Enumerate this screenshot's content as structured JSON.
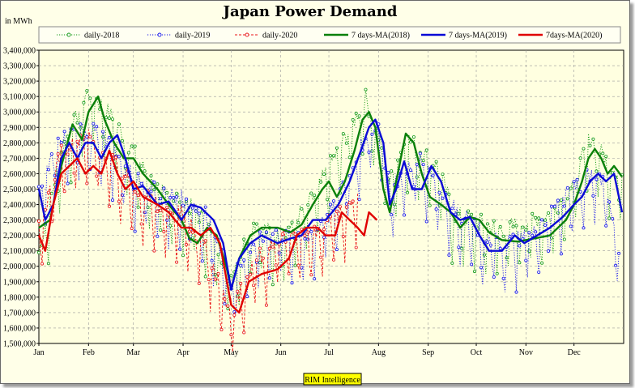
{
  "chart_data": {
    "type": "line",
    "title": "Japan Power Demand",
    "unit_label": "in MWh",
    "source": "RIM Intelligence",
    "ylim": [
      1500000,
      3400000
    ],
    "y_ticks": [
      1500000,
      1600000,
      1700000,
      1800000,
      1900000,
      2000000,
      2100000,
      2200000,
      2300000,
      2400000,
      2500000,
      2600000,
      2700000,
      2800000,
      2900000,
      3000000,
      3100000,
      3200000,
      3300000,
      3400000
    ],
    "y_tick_labels": [
      "1,500,000",
      "1,600,000",
      "1,700,000",
      "1,800,000",
      "1,900,000",
      "2,000,000",
      "2,100,000",
      "2,200,000",
      "2,300,000",
      "2,400,000",
      "2,500,000",
      "2,600,000",
      "2,700,000",
      "2,800,000",
      "2,900,000",
      "3,000,000",
      "3,100,000",
      "3,200,000",
      "3,300,000",
      "3,400,000"
    ],
    "x_tick_labels": [
      "Jan",
      "Feb",
      "Mar",
      "Apr",
      "May",
      "Jun",
      "Jul",
      "Aug",
      "Sep",
      "Oct",
      "Nov",
      "Dec"
    ],
    "x_domain_days": [
      1,
      366
    ],
    "grid": true,
    "legend_position": "top",
    "colors": {
      "s2018": "#159a15",
      "s2019": "#1515e8",
      "s2020": "#e81515",
      "ma2018": "#0a800a",
      "ma2019": "#0a0ad6",
      "ma2020": "#e00000"
    },
    "series": [
      {
        "name": "daily-2018",
        "style": "dotted-markers",
        "anchors": [
          [
            1,
            2050000
          ],
          [
            15,
            2700000
          ],
          [
            32,
            3100000
          ],
          [
            45,
            2950000
          ],
          [
            60,
            2700000
          ],
          [
            75,
            2450000
          ],
          [
            90,
            2400000
          ],
          [
            105,
            2250000
          ],
          [
            121,
            1900000
          ],
          [
            135,
            2250000
          ],
          [
            150,
            2150000
          ],
          [
            160,
            2250000
          ],
          [
            172,
            2400000
          ],
          [
            182,
            2600000
          ],
          [
            195,
            2850000
          ],
          [
            205,
            3050000
          ],
          [
            213,
            2800000
          ],
          [
            220,
            2500000
          ],
          [
            230,
            2800000
          ],
          [
            240,
            2700000
          ],
          [
            250,
            2600000
          ],
          [
            260,
            2300000
          ],
          [
            274,
            2250000
          ],
          [
            290,
            2200000
          ],
          [
            305,
            2250000
          ],
          [
            320,
            2300000
          ],
          [
            335,
            2500000
          ],
          [
            345,
            2800000
          ],
          [
            355,
            2650000
          ],
          [
            365,
            2550000
          ]
        ]
      },
      {
        "name": "daily-2019",
        "style": "dotted-markers",
        "anchors": [
          [
            1,
            2450000
          ],
          [
            15,
            2800000
          ],
          [
            32,
            2850000
          ],
          [
            45,
            2750000
          ],
          [
            60,
            2550000
          ],
          [
            75,
            2450000
          ],
          [
            90,
            2400000
          ],
          [
            105,
            2300000
          ],
          [
            121,
            1850000
          ],
          [
            135,
            2100000
          ],
          [
            150,
            2200000
          ],
          [
            160,
            2150000
          ],
          [
            172,
            2200000
          ],
          [
            182,
            2300000
          ],
          [
            195,
            2550000
          ],
          [
            205,
            2800000
          ],
          [
            213,
            2900000
          ],
          [
            220,
            2450000
          ],
          [
            230,
            2600000
          ],
          [
            240,
            2650000
          ],
          [
            250,
            2450000
          ],
          [
            260,
            2350000
          ],
          [
            274,
            2200000
          ],
          [
            290,
            2100000
          ],
          [
            305,
            2150000
          ],
          [
            320,
            2300000
          ],
          [
            335,
            2450000
          ],
          [
            345,
            2550000
          ],
          [
            355,
            2500000
          ],
          [
            363,
            2100000
          ]
        ]
      },
      {
        "name": "daily-2020",
        "style": "dashed-markers",
        "anchors": [
          [
            1,
            2200000
          ],
          [
            15,
            2700000
          ],
          [
            32,
            2800000
          ],
          [
            45,
            2650000
          ],
          [
            60,
            2500000
          ],
          [
            75,
            2350000
          ],
          [
            90,
            2300000
          ],
          [
            105,
            2100000
          ],
          [
            121,
            1650000
          ],
          [
            135,
            2000000
          ],
          [
            150,
            2100000
          ],
          [
            160,
            2200000
          ],
          [
            172,
            2150000
          ],
          [
            182,
            2250000
          ],
          [
            190,
            2300000
          ],
          [
            200,
            2450000
          ]
        ]
      },
      {
        "name": "7 days-MA(2018)",
        "style": "solid",
        "anchors": [
          [
            1,
            2250000
          ],
          [
            8,
            2300000
          ],
          [
            15,
            2650000
          ],
          [
            22,
            2920000
          ],
          [
            28,
            2820000
          ],
          [
            32,
            3000000
          ],
          [
            38,
            3100000
          ],
          [
            42,
            2950000
          ],
          [
            48,
            2800000
          ],
          [
            54,
            2700000
          ],
          [
            60,
            2700000
          ],
          [
            66,
            2600000
          ],
          [
            75,
            2500000
          ],
          [
            82,
            2400000
          ],
          [
            90,
            2300000
          ],
          [
            95,
            2180000
          ],
          [
            100,
            2150000
          ],
          [
            106,
            2250000
          ],
          [
            112,
            2200000
          ],
          [
            118,
            2000000
          ],
          [
            121,
            1850000
          ],
          [
            126,
            2050000
          ],
          [
            133,
            2200000
          ],
          [
            140,
            2250000
          ],
          [
            150,
            2250000
          ],
          [
            158,
            2220000
          ],
          [
            165,
            2270000
          ],
          [
            172,
            2400000
          ],
          [
            178,
            2500000
          ],
          [
            182,
            2550000
          ],
          [
            187,
            2450000
          ],
          [
            192,
            2550000
          ],
          [
            198,
            2750000
          ],
          [
            203,
            2950000
          ],
          [
            207,
            3000000
          ],
          [
            211,
            2900000
          ],
          [
            216,
            2500000
          ],
          [
            220,
            2350000
          ],
          [
            225,
            2600000
          ],
          [
            230,
            2860000
          ],
          [
            235,
            2800000
          ],
          [
            240,
            2600000
          ],
          [
            245,
            2450000
          ],
          [
            252,
            2400000
          ],
          [
            258,
            2350000
          ],
          [
            264,
            2250000
          ],
          [
            270,
            2320000
          ],
          [
            276,
            2300000
          ],
          [
            282,
            2220000
          ],
          [
            290,
            2170000
          ],
          [
            300,
            2160000
          ],
          [
            310,
            2180000
          ],
          [
            320,
            2200000
          ],
          [
            330,
            2300000
          ],
          [
            335,
            2400000
          ],
          [
            340,
            2550000
          ],
          [
            344,
            2700000
          ],
          [
            348,
            2760000
          ],
          [
            352,
            2700000
          ],
          [
            356,
            2600000
          ],
          [
            360,
            2650000
          ],
          [
            365,
            2580000
          ]
        ]
      },
      {
        "name": "7 days-MA(2019)",
        "style": "solid",
        "anchors": [
          [
            1,
            2500000
          ],
          [
            5,
            2300000
          ],
          [
            10,
            2400000
          ],
          [
            15,
            2700000
          ],
          [
            20,
            2800000
          ],
          [
            25,
            2700000
          ],
          [
            30,
            2800000
          ],
          [
            35,
            2800000
          ],
          [
            40,
            2700000
          ],
          [
            45,
            2800000
          ],
          [
            50,
            2850000
          ],
          [
            55,
            2700000
          ],
          [
            60,
            2500000
          ],
          [
            66,
            2520000
          ],
          [
            75,
            2400000
          ],
          [
            82,
            2420000
          ],
          [
            90,
            2300000
          ],
          [
            96,
            2400000
          ],
          [
            102,
            2380000
          ],
          [
            110,
            2300000
          ],
          [
            116,
            2150000
          ],
          [
            121,
            1850000
          ],
          [
            126,
            2050000
          ],
          [
            133,
            2150000
          ],
          [
            140,
            2200000
          ],
          [
            150,
            2150000
          ],
          [
            158,
            2180000
          ],
          [
            165,
            2200000
          ],
          [
            172,
            2300000
          ],
          [
            180,
            2300000
          ],
          [
            188,
            2400000
          ],
          [
            195,
            2550000
          ],
          [
            202,
            2750000
          ],
          [
            207,
            2900000
          ],
          [
            211,
            2950000
          ],
          [
            216,
            2800000
          ],
          [
            220,
            2400000
          ],
          [
            224,
            2500000
          ],
          [
            229,
            2680000
          ],
          [
            234,
            2500000
          ],
          [
            240,
            2500000
          ],
          [
            246,
            2650000
          ],
          [
            252,
            2550000
          ],
          [
            258,
            2350000
          ],
          [
            264,
            2300000
          ],
          [
            270,
            2320000
          ],
          [
            276,
            2200000
          ],
          [
            282,
            2100000
          ],
          [
            290,
            2100000
          ],
          [
            298,
            2200000
          ],
          [
            304,
            2150000
          ],
          [
            312,
            2200000
          ],
          [
            320,
            2250000
          ],
          [
            328,
            2320000
          ],
          [
            335,
            2400000
          ],
          [
            340,
            2450000
          ],
          [
            345,
            2550000
          ],
          [
            350,
            2600000
          ],
          [
            355,
            2550000
          ],
          [
            360,
            2600000
          ],
          [
            365,
            2350000
          ]
        ]
      },
      {
        "name": "7days-MA(2020)",
        "style": "solid",
        "anchors": [
          [
            1,
            2200000
          ],
          [
            5,
            2100000
          ],
          [
            10,
            2400000
          ],
          [
            15,
            2600000
          ],
          [
            20,
            2650000
          ],
          [
            25,
            2700000
          ],
          [
            30,
            2600000
          ],
          [
            35,
            2650000
          ],
          [
            40,
            2600000
          ],
          [
            45,
            2750000
          ],
          [
            50,
            2600000
          ],
          [
            55,
            2500000
          ],
          [
            60,
            2550000
          ],
          [
            66,
            2450000
          ],
          [
            75,
            2400000
          ],
          [
            82,
            2350000
          ],
          [
            90,
            2250000
          ],
          [
            96,
            2250000
          ],
          [
            102,
            2200000
          ],
          [
            108,
            2250000
          ],
          [
            114,
            2150000
          ],
          [
            121,
            1750000
          ],
          [
            126,
            1700000
          ],
          [
            132,
            1900000
          ],
          [
            140,
            1950000
          ],
          [
            150,
            1980000
          ],
          [
            157,
            2050000
          ],
          [
            162,
            2200000
          ],
          [
            168,
            2250000
          ],
          [
            175,
            2250000
          ],
          [
            180,
            2200000
          ],
          [
            186,
            2200000
          ],
          [
            190,
            2350000
          ],
          [
            195,
            2300000
          ],
          [
            200,
            2250000
          ],
          [
            204,
            2200000
          ],
          [
            207,
            2350000
          ],
          [
            212,
            2300000
          ]
        ]
      }
    ]
  }
}
